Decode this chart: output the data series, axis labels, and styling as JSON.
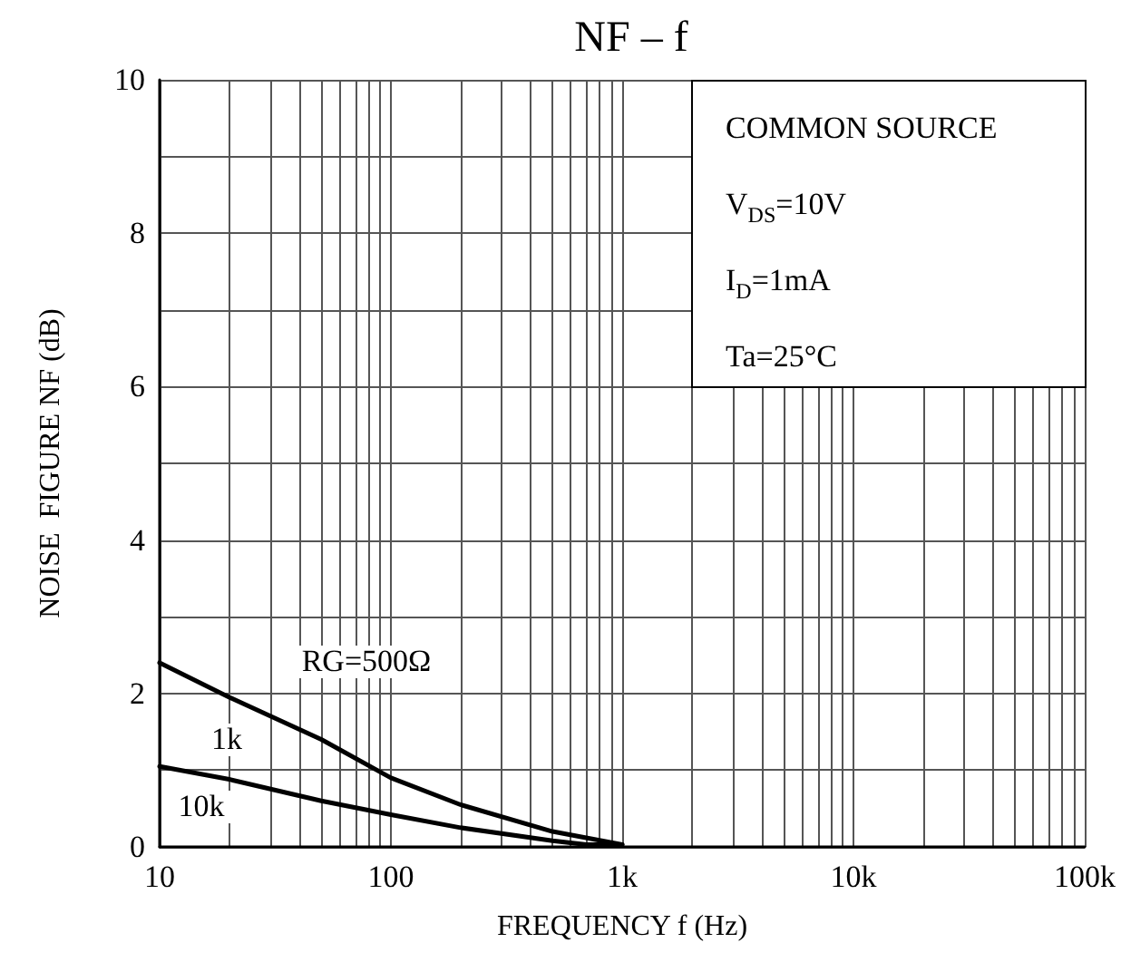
{
  "chart_data": {
    "type": "line",
    "title": "NF – f",
    "xlabel": "FREQUENCY f (Hz)",
    "ylabel": "NOISE  FIGURE NF (dB)",
    "log": "x",
    "grid": true,
    "marker": "none",
    "line_style": "solid",
    "xlim": [
      10,
      100000
    ],
    "ylim": [
      0,
      10
    ],
    "xticks": [
      10,
      {
        "value": 20,
        "label": null
      },
      {
        "value": 30,
        "label": null
      },
      {
        "value": 40,
        "label": null
      },
      {
        "value": 50,
        "label": null
      },
      {
        "value": 60,
        "label": null
      },
      {
        "value": 70,
        "label": null
      },
      {
        "value": 80,
        "label": null
      },
      {
        "value": 90,
        "label": null
      },
      100,
      {
        "value": 200,
        "label": null
      },
      {
        "value": 300,
        "label": null
      },
      {
        "value": 400,
        "label": null
      },
      {
        "value": 500,
        "label": null
      },
      {
        "value": 600,
        "label": null
      },
      {
        "value": 700,
        "label": null
      },
      {
        "value": 800,
        "label": null
      },
      {
        "value": 900,
        "label": null
      },
      {
        "value": 1000,
        "label": "1k"
      },
      {
        "value": 2000,
        "label": null
      },
      {
        "value": 3000,
        "label": null
      },
      {
        "value": 4000,
        "label": null
      },
      {
        "value": 5000,
        "label": null
      },
      {
        "value": 6000,
        "label": null
      },
      {
        "value": 7000,
        "label": null
      },
      {
        "value": 8000,
        "label": null
      },
      {
        "value": 9000,
        "label": null
      },
      {
        "value": 10000,
        "label": "10k"
      },
      {
        "value": 20000,
        "label": null
      },
      {
        "value": 30000,
        "label": null
      },
      {
        "value": 40000,
        "label": null
      },
      {
        "value": 50000,
        "label": null
      },
      {
        "value": 60000,
        "label": null
      },
      {
        "value": 70000,
        "label": null
      },
      {
        "value": 80000,
        "label": null
      },
      {
        "value": 90000,
        "label": null
      },
      {
        "value": 100000,
        "label": "100k"
      }
    ],
    "yticks": [
      0,
      {
        "value": 1,
        "label": null
      },
      2,
      {
        "value": 3,
        "label": null
      },
      4,
      {
        "value": 5,
        "label": null
      },
      6,
      {
        "value": 7,
        "label": null
      },
      8,
      {
        "value": 9,
        "label": null
      },
      10
    ],
    "series": [
      {
        "color": "#000000",
        "x": [
          10,
          20,
          50,
          100,
          200,
          500,
          1000
        ],
        "values": [
          2.4,
          1.95,
          1.4,
          0.9,
          0.55,
          0.2,
          0.03
        ]
      },
      {
        "color": "#000000",
        "x": [
          10,
          20,
          50,
          100,
          200,
          500,
          700,
          1000
        ],
        "values": [
          1.05,
          0.88,
          0.6,
          0.42,
          0.25,
          0.08,
          0.03,
          0.03
        ]
      }
    ],
    "annotations": [
      "RG=500Ω",
      "1k",
      "10k",
      "COMMON SOURCE",
      "V$_{DS}$=10V",
      "I$_{D}$=1mA",
      "Ta=25°C"
    ]
  }
}
